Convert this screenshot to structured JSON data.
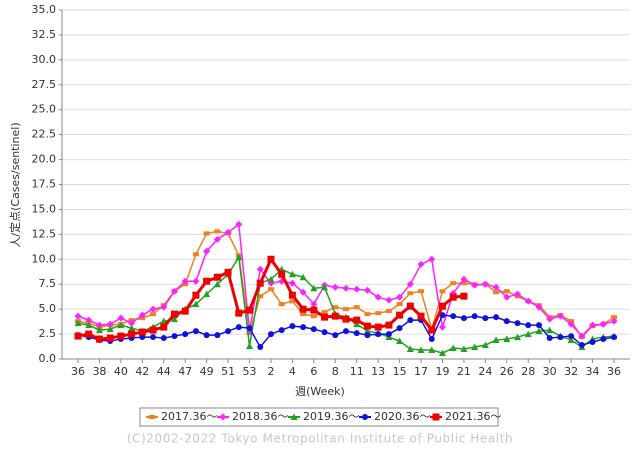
{
  "chart_data": {
    "type": "line",
    "x_label": "週(Week)",
    "y_label": "人/定点(Cases/sentinel)",
    "footer": "(C)2002-2022 Tokyo Metropolitan Institute of Public Health",
    "categories": [
      "36",
      null,
      "38",
      null,
      "40",
      null,
      "42",
      null,
      "44",
      null,
      "47",
      null,
      "49",
      null,
      "51",
      null,
      "53",
      null,
      "2",
      null,
      "4",
      null,
      "6",
      null,
      "8",
      null,
      "11",
      null,
      "13",
      null,
      "15",
      null,
      "17",
      null,
      "19",
      null,
      "21",
      null,
      "24",
      null,
      "26",
      null,
      "28",
      null,
      "30",
      null,
      "32",
      null,
      "34",
      null,
      "36"
    ],
    "ylim": [
      0,
      35
    ],
    "yticks": [
      {
        "value": 0,
        "label": "0.0"
      },
      {
        "value": 2.5,
        "label": "2.5"
      },
      {
        "value": 5,
        "label": "5.0"
      },
      {
        "value": 7.5,
        "label": "7.5"
      },
      {
        "value": 10,
        "label": "10.0"
      },
      {
        "value": 12.5,
        "label": "12.5"
      },
      {
        "value": 15,
        "label": "15.0"
      },
      {
        "value": 17.5,
        "label": "17.5"
      },
      {
        "value": 20,
        "label": "20.0"
      },
      {
        "value": 22.5,
        "label": "22.5"
      },
      {
        "value": 25,
        "label": "25.0"
      },
      {
        "value": 27.5,
        "label": "27.5"
      },
      {
        "value": 30,
        "label": "30.0"
      },
      {
        "value": 32.5,
        "label": "32.5"
      },
      {
        "value": 35,
        "label": "35.0"
      }
    ],
    "grid": true,
    "series": [
      {
        "name": "2017.36～",
        "color": "#f28020",
        "marker": "rect",
        "values": [
          3.8,
          3.6,
          3.2,
          3.4,
          3.5,
          3.9,
          4.1,
          4.5,
          5.4,
          6.8,
          7.5,
          10.5,
          12.6,
          12.8,
          12.6,
          10.4,
          2.6,
          6.3,
          7.0,
          5.5,
          5.8,
          4.5,
          4.3,
          4.7,
          5.2,
          5.0,
          5.2,
          4.5,
          4.6,
          4.8,
          5.5,
          6.6,
          6.8,
          3.0,
          6.8,
          7.6,
          7.6,
          7.5,
          7.5,
          6.7,
          6.8,
          6.3,
          5.8,
          5.4,
          4.2,
          4.4,
          3.8,
          2.2,
          3.3,
          3.5,
          4.2
        ]
      },
      {
        "name": "2018.36～",
        "color": "#ff22ff",
        "marker": "diamond",
        "values": [
          4.3,
          3.9,
          3.4,
          3.5,
          4.1,
          3.6,
          4.4,
          5.0,
          5.2,
          6.8,
          7.8,
          7.8,
          10.8,
          12.0,
          12.7,
          13.5,
          2.8,
          9.0,
          7.6,
          7.8,
          7.6,
          6.7,
          5.5,
          7.4,
          7.2,
          7.1,
          7.0,
          6.9,
          6.2,
          5.9,
          6.2,
          7.5,
          9.5,
          10.0,
          3.2,
          6.6,
          8.0,
          7.4,
          7.5,
          7.2,
          6.2,
          6.5,
          5.8,
          5.2,
          4.0,
          4.3,
          3.5,
          2.3,
          3.4,
          3.5,
          3.8
        ]
      },
      {
        "name": "2019.36～",
        "color": "#22a022",
        "marker": "triangle",
        "values": [
          3.6,
          3.4,
          2.9,
          3.0,
          3.4,
          3.1,
          2.8,
          3.2,
          3.8,
          4.0,
          5.0,
          5.5,
          6.5,
          7.5,
          8.5,
          10.2,
          1.3,
          7.6,
          8.0,
          9.0,
          8.5,
          8.2,
          7.1,
          7.2,
          4.5,
          4.2,
          3.5,
          2.8,
          2.6,
          2.2,
          1.8,
          1.0,
          0.9,
          0.9,
          0.6,
          1.1,
          1.0,
          1.2,
          1.4,
          1.9,
          2.0,
          2.2,
          2.5,
          2.8,
          2.9,
          2.3,
          1.9,
          1.2,
          2.0,
          2.2,
          2.3
        ]
      },
      {
        "name": "2020.36～",
        "color": "#1010e0",
        "marker": "circle",
        "values": [
          2.4,
          2.2,
          1.9,
          1.8,
          2.0,
          2.1,
          2.2,
          2.2,
          2.1,
          2.3,
          2.5,
          2.8,
          2.4,
          2.4,
          2.8,
          3.2,
          3.1,
          1.2,
          2.5,
          2.9,
          3.3,
          3.2,
          3.0,
          2.7,
          2.4,
          2.8,
          2.6,
          2.4,
          2.5,
          2.5,
          3.1,
          3.9,
          3.9,
          2.0,
          4.4,
          4.3,
          4.1,
          4.3,
          4.1,
          4.2,
          3.8,
          3.6,
          3.4,
          3.4,
          2.1,
          2.2,
          2.3,
          1.4,
          1.7,
          2.0,
          2.2
        ]
      },
      {
        "name": "2021.36～",
        "color": "#ee0000",
        "marker": "bigrect",
        "values": [
          2.3,
          2.5,
          2.0,
          2.1,
          2.3,
          2.5,
          2.7,
          2.9,
          3.2,
          4.5,
          4.8,
          6.4,
          7.8,
          8.2,
          8.7,
          4.6,
          4.9,
          7.6,
          10.0,
          8.5,
          6.4,
          5.0,
          4.9,
          4.2,
          4.3,
          4.0,
          3.9,
          3.3,
          3.2,
          3.4,
          4.4,
          5.3,
          4.3,
          2.9,
          5.3,
          6.2,
          6.3,
          null,
          null,
          null,
          null,
          null,
          null,
          null,
          null,
          null,
          null,
          null,
          null,
          null,
          null
        ]
      }
    ]
  }
}
